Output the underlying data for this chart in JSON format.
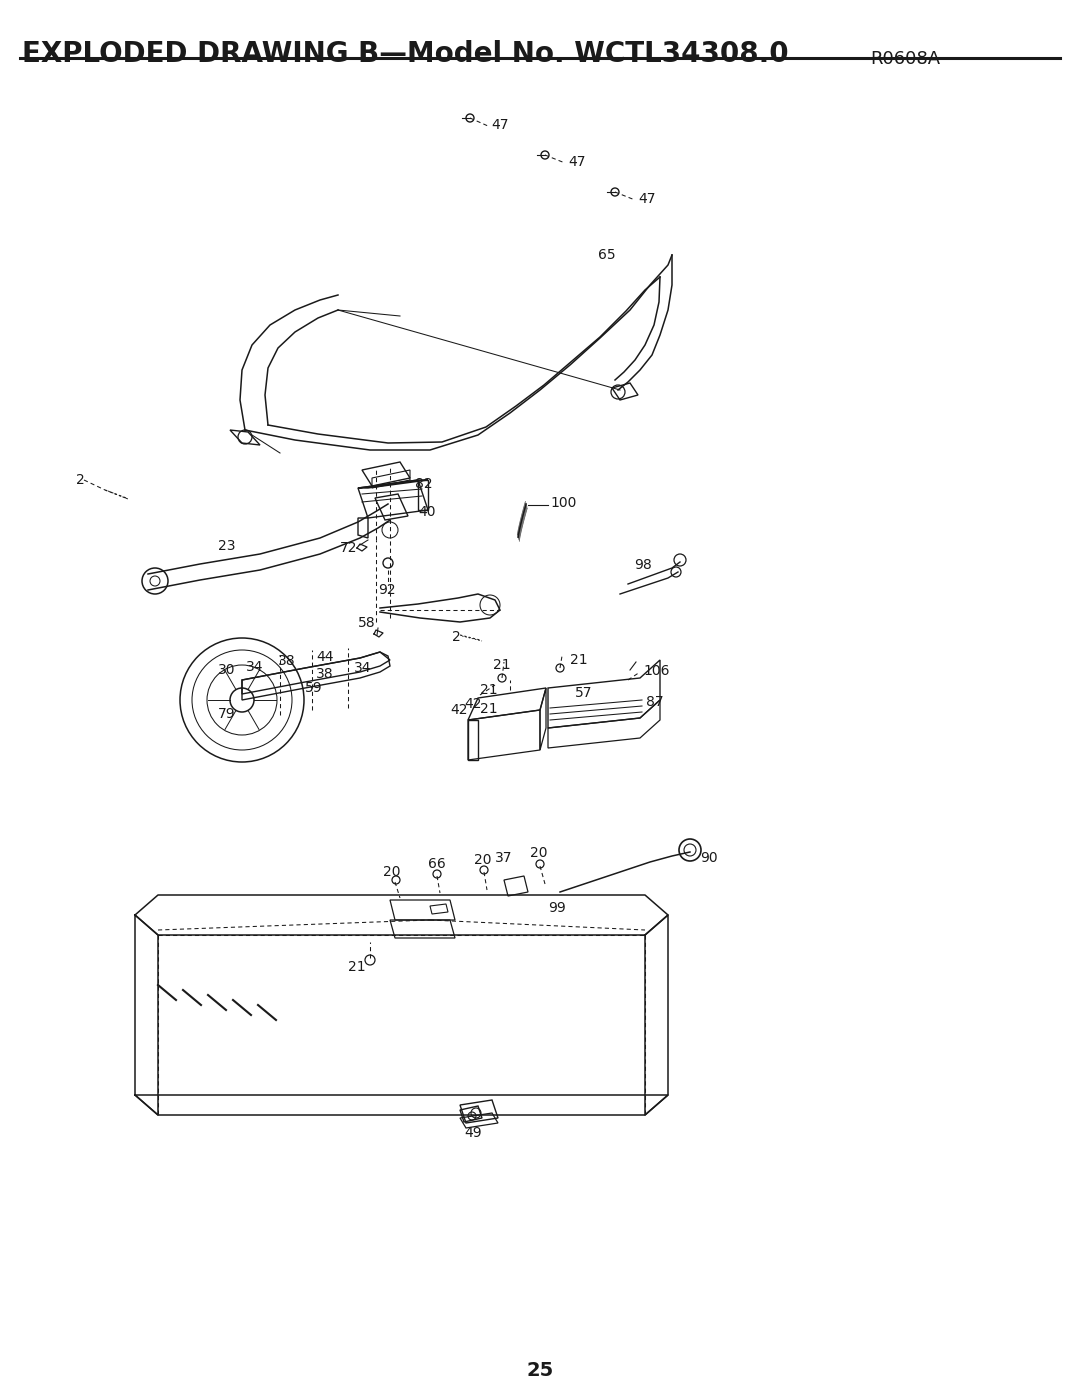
{
  "title_main": "EXPLODED DRAWING B—Model No. WCTL34308.0",
  "title_sub": "R0608A",
  "page_number": "25",
  "bg": "#ffffff",
  "lc": "#1a1a1a",
  "title_fontsize": 20,
  "sub_fontsize": 13,
  "label_fs": 10,
  "page_fs": 14,
  "figsize": [
    10.8,
    13.97
  ],
  "dpi": 100
}
